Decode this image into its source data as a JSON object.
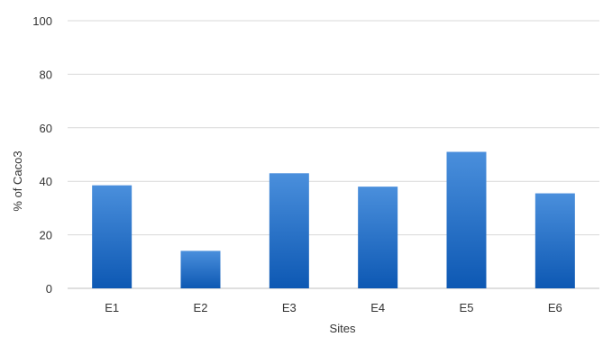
{
  "chart_data": {
    "type": "bar",
    "title": "",
    "xlabel": "Sites",
    "ylabel": "% of Caco3",
    "categories": [
      "E1",
      "E2",
      "E3",
      "E4",
      "E5",
      "E6"
    ],
    "values": [
      38.5,
      14,
      43,
      38,
      51,
      35.5
    ],
    "ylim": [
      0,
      100
    ],
    "yticks": [
      0,
      20,
      40,
      60,
      80,
      100
    ],
    "grid": true,
    "legend": "none",
    "colors": {
      "bar_top": "#4a8fdc",
      "bar_bottom": "#0d58b3",
      "grid": "#d9d9d9",
      "text": "#333333"
    }
  }
}
